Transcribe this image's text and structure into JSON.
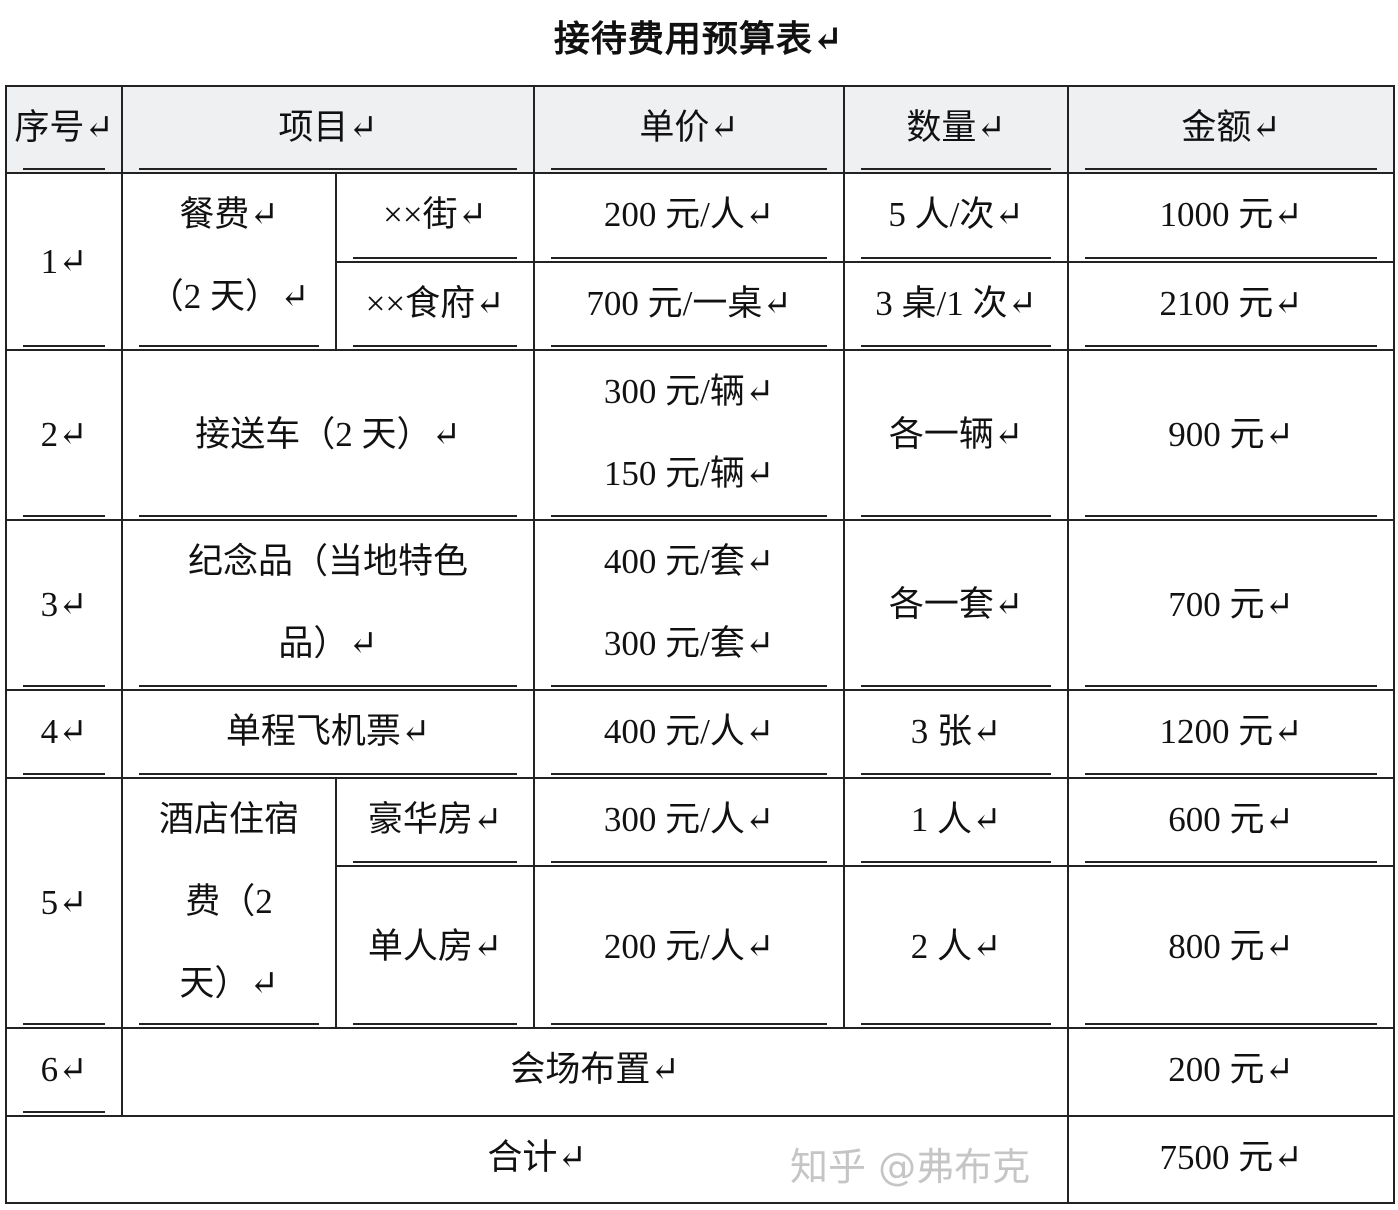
{
  "title": "接待费用预算表↵",
  "headers": {
    "no": "序号↵",
    "item": "项目↵",
    "unit_price": "单价↵",
    "quantity": "数量↵",
    "amount": "金额↵"
  },
  "rows": {
    "r1": {
      "no": "1↵",
      "item": "餐费↵",
      "item2": "（2 天）↵",
      "a": {
        "sub": "××街↵",
        "price": "200 元/人↵",
        "qty": "5 人/次↵",
        "amount": "1000 元↵"
      },
      "b": {
        "sub": "××食府↵",
        "price": "700 元/一桌↵",
        "qty": "3 桌/1 次↵",
        "amount": "2100 元↵"
      }
    },
    "r2": {
      "no": "2↵",
      "item": "接送车（2 天）↵",
      "price1": "300 元/辆↵",
      "price2": "150 元/辆↵",
      "qty": "各一辆↵",
      "amount": "900 元↵"
    },
    "r3": {
      "no": "3↵",
      "item": "纪念品（当地特色",
      "item2": "品）↵",
      "price1": "400 元/套↵",
      "price2": "300 元/套↵",
      "qty": "各一套↵",
      "amount": "700 元↵"
    },
    "r4": {
      "no": "4↵",
      "item": "单程飞机票↵",
      "price": "400 元/人↵",
      "qty": "3 张↵",
      "amount": "1200 元↵"
    },
    "r5": {
      "no": "5↵",
      "item": "酒店住宿",
      "item2": "费（2",
      "item3": "天）↵",
      "a": {
        "sub": "豪华房↵",
        "price": "300 元/人↵",
        "qty": "1 人↵",
        "amount": "600 元↵"
      },
      "b": {
        "sub": "单人房↵",
        "price": "200 元/人↵",
        "qty": "2 人↵",
        "amount": "800 元↵"
      }
    },
    "r6": {
      "no": "6↵",
      "item": "会场布置↵",
      "amount": "200 元↵"
    }
  },
  "total": {
    "label": "合计↵",
    "amount": "7500 元↵"
  },
  "watermark": "知乎 @弗布克"
}
